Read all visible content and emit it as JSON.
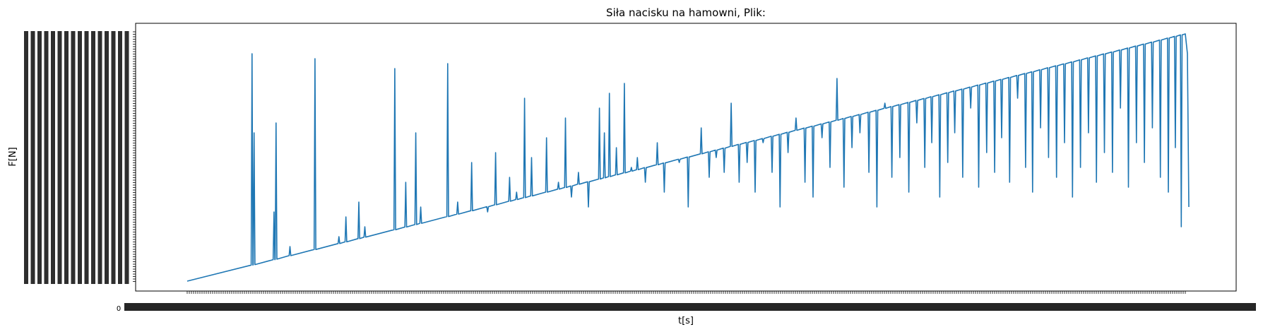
{
  "chart_data": {
    "type": "line",
    "title": "Siła nacisku na hamowni, Plik:",
    "xlabel": "t[s]",
    "ylabel": "F[N]",
    "x_first_tick": "0",
    "line_color": "#1f77b4",
    "grid": false,
    "legend": "none",
    "trend": {
      "start": 0.0,
      "end": 1.0
    },
    "dips": [
      [
        0.065,
        0.92
      ],
      [
        0.067,
        0.6
      ],
      [
        0.087,
        0.28
      ],
      [
        0.089,
        0.64
      ],
      [
        0.103,
        0.14
      ],
      [
        0.128,
        0.9
      ],
      [
        0.152,
        0.18
      ],
      [
        0.159,
        0.26
      ],
      [
        0.172,
        0.32
      ],
      [
        0.178,
        0.22
      ],
      [
        0.208,
        0.86
      ],
      [
        0.219,
        0.4
      ],
      [
        0.229,
        0.6
      ],
      [
        0.234,
        0.3
      ],
      [
        0.261,
        0.88
      ],
      [
        0.271,
        0.32
      ],
      [
        0.285,
        0.48
      ],
      [
        0.301,
        0.28
      ],
      [
        0.309,
        0.52
      ],
      [
        0.323,
        0.42
      ],
      [
        0.33,
        0.36
      ],
      [
        0.338,
        0.74
      ],
      [
        0.345,
        0.5
      ],
      [
        0.36,
        0.58
      ],
      [
        0.372,
        0.4
      ],
      [
        0.379,
        0.66
      ],
      [
        0.385,
        0.34
      ],
      [
        0.392,
        0.44
      ],
      [
        0.402,
        0.3
      ],
      [
        0.413,
        0.7
      ],
      [
        0.418,
        0.6
      ],
      [
        0.423,
        0.76
      ],
      [
        0.43,
        0.54
      ],
      [
        0.438,
        0.8
      ],
      [
        0.445,
        0.46
      ],
      [
        0.451,
        0.5
      ],
      [
        0.459,
        0.4
      ],
      [
        0.471,
        0.56
      ],
      [
        0.478,
        0.36
      ],
      [
        0.493,
        0.48
      ],
      [
        0.502,
        0.3
      ],
      [
        0.515,
        0.62
      ],
      [
        0.523,
        0.42
      ],
      [
        0.53,
        0.5
      ],
      [
        0.538,
        0.44
      ],
      [
        0.545,
        0.72
      ],
      [
        0.553,
        0.4
      ],
      [
        0.561,
        0.48
      ],
      [
        0.569,
        0.36
      ],
      [
        0.577,
        0.56
      ],
      [
        0.586,
        0.44
      ],
      [
        0.594,
        0.3
      ],
      [
        0.602,
        0.52
      ],
      [
        0.61,
        0.66
      ],
      [
        0.619,
        0.4
      ],
      [
        0.627,
        0.34
      ],
      [
        0.636,
        0.58
      ],
      [
        0.644,
        0.46
      ],
      [
        0.651,
        0.82
      ],
      [
        0.658,
        0.38
      ],
      [
        0.666,
        0.54
      ],
      [
        0.674,
        0.6
      ],
      [
        0.683,
        0.44
      ],
      [
        0.691,
        0.3
      ],
      [
        0.699,
        0.72
      ],
      [
        0.706,
        0.42
      ],
      [
        0.714,
        0.5
      ],
      [
        0.723,
        0.36
      ],
      [
        0.731,
        0.64
      ],
      [
        0.739,
        0.46
      ],
      [
        0.746,
        0.56
      ],
      [
        0.754,
        0.34
      ],
      [
        0.762,
        0.48
      ],
      [
        0.769,
        0.6
      ],
      [
        0.777,
        0.42
      ],
      [
        0.785,
        0.7
      ],
      [
        0.793,
        0.38
      ],
      [
        0.801,
        0.52
      ],
      [
        0.809,
        0.44
      ],
      [
        0.816,
        0.58
      ],
      [
        0.824,
        0.4
      ],
      [
        0.832,
        0.74
      ],
      [
        0.84,
        0.46
      ],
      [
        0.847,
        0.36
      ],
      [
        0.855,
        0.62
      ],
      [
        0.863,
        0.5
      ],
      [
        0.871,
        0.42
      ],
      [
        0.879,
        0.56
      ],
      [
        0.887,
        0.34
      ],
      [
        0.895,
        0.46
      ],
      [
        0.903,
        0.6
      ],
      [
        0.911,
        0.4
      ],
      [
        0.919,
        0.52
      ],
      [
        0.927,
        0.44
      ],
      [
        0.935,
        0.7
      ],
      [
        0.943,
        0.38
      ],
      [
        0.951,
        0.56
      ],
      [
        0.959,
        0.48
      ],
      [
        0.967,
        0.62
      ],
      [
        0.975,
        0.42
      ],
      [
        0.983,
        0.36
      ],
      [
        0.99,
        0.54
      ],
      [
        0.996,
        0.22
      ]
    ]
  }
}
